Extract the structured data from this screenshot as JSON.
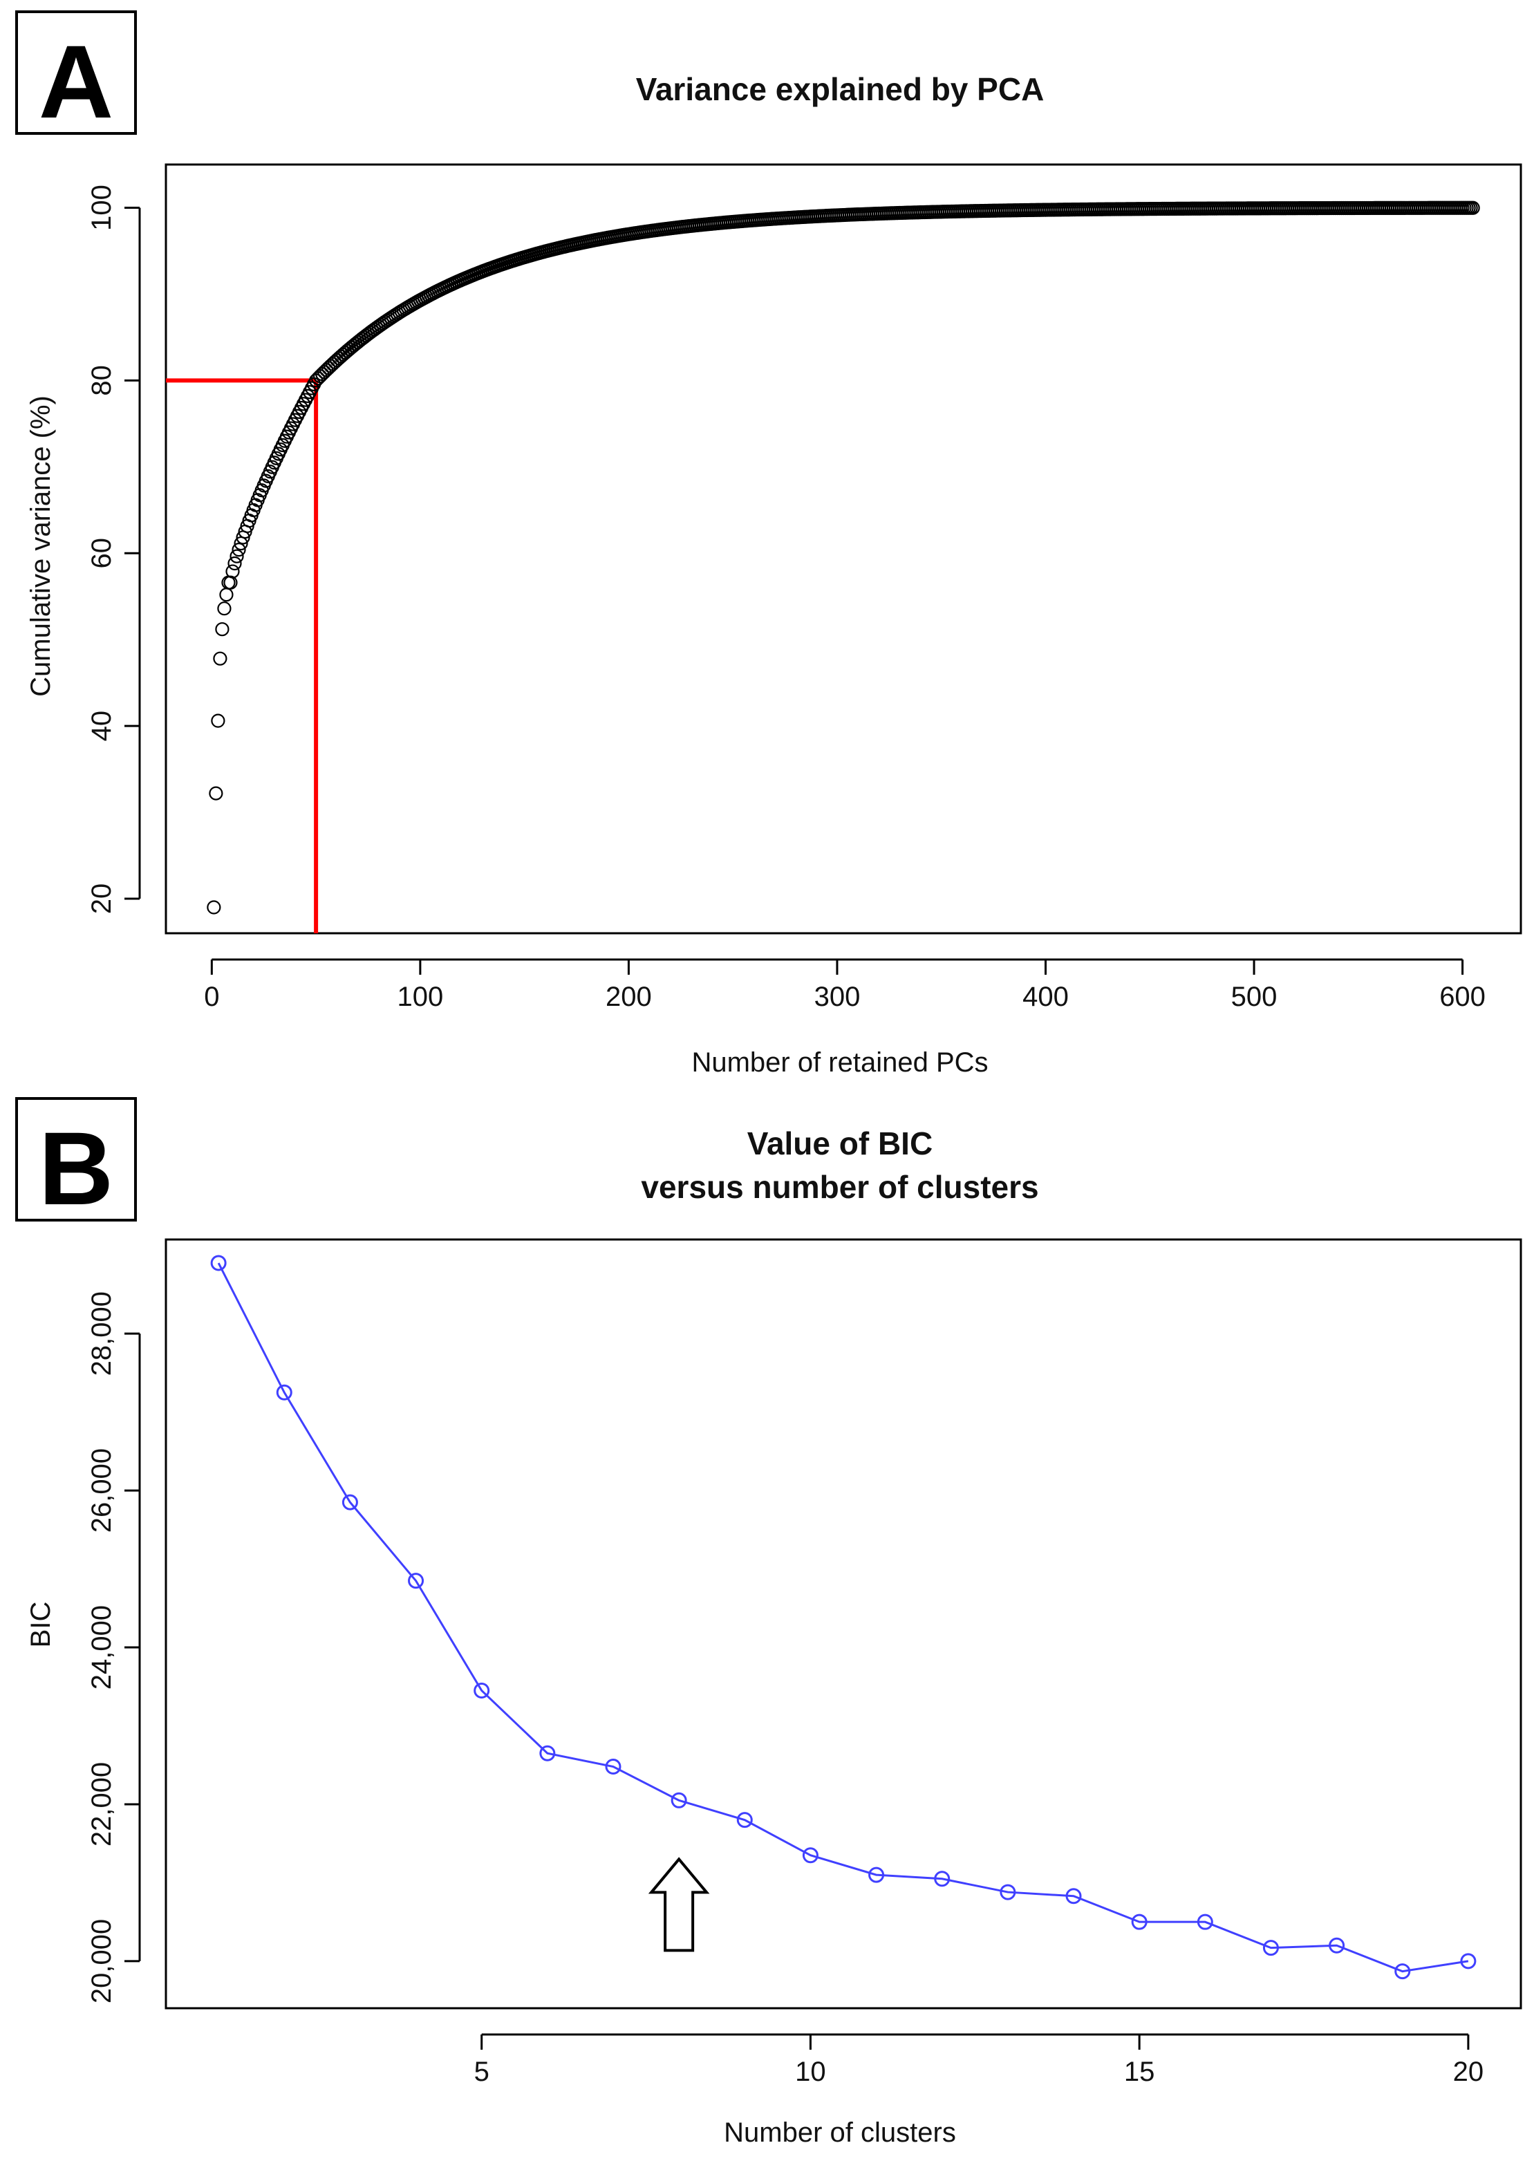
{
  "panels": [
    {
      "label": "A"
    },
    {
      "label": "B"
    }
  ],
  "colors": {
    "pca_points": "#000000",
    "highlight": "#ff0000",
    "bic_line": "#4040ff",
    "axis": "#000000"
  },
  "chart_data": [
    {
      "type": "scatter",
      "title": "Variance explained by PCA",
      "xlabel": "Number of retained PCs",
      "ylabel": "Cumulative variance (%)",
      "xlim": [
        -22,
        628
      ],
      "ylim": [
        16,
        105
      ],
      "xticks": [
        "0",
        "100",
        "200",
        "300",
        "400",
        "500",
        "600"
      ],
      "yticks": [
        "20",
        "40",
        "60",
        "80",
        "100"
      ],
      "n_points": 605,
      "first_points": [
        {
          "x": 1,
          "y": 19.0
        },
        {
          "x": 2,
          "y": 32.2
        },
        {
          "x": 3,
          "y": 40.6
        },
        {
          "x": 4,
          "y": 47.8
        },
        {
          "x": 5,
          "y": 51.2
        },
        {
          "x": 6,
          "y": 53.6
        },
        {
          "x": 7,
          "y": 55.2
        },
        {
          "x": 8,
          "y": 56.6
        }
      ],
      "highlight": {
        "x": 50,
        "y": 80
      }
    },
    {
      "type": "line",
      "title": [
        "Value of BIC",
        "versus number of clusters"
      ],
      "xlabel": "Number of clusters",
      "ylabel": "BIC",
      "xlim": [
        0.2,
        20.8
      ],
      "ylim": [
        19400,
        29200
      ],
      "xticks": [
        "5",
        "10",
        "15",
        "20"
      ],
      "yticks": [
        "20,000",
        "22,000",
        "24,000",
        "26,000",
        "28,000"
      ],
      "x": [
        1,
        2,
        3,
        4,
        5,
        6,
        7,
        8,
        9,
        10,
        11,
        12,
        13,
        14,
        15,
        16,
        17,
        18,
        19,
        20
      ],
      "values": [
        28900,
        27250,
        25850,
        24850,
        23450,
        22650,
        22480,
        22050,
        21800,
        21350,
        21100,
        21050,
        20880,
        20830,
        20500,
        20500,
        20170,
        20200,
        19870,
        20000
      ],
      "arrow_at": {
        "x": 8,
        "y": 21300
      }
    }
  ]
}
